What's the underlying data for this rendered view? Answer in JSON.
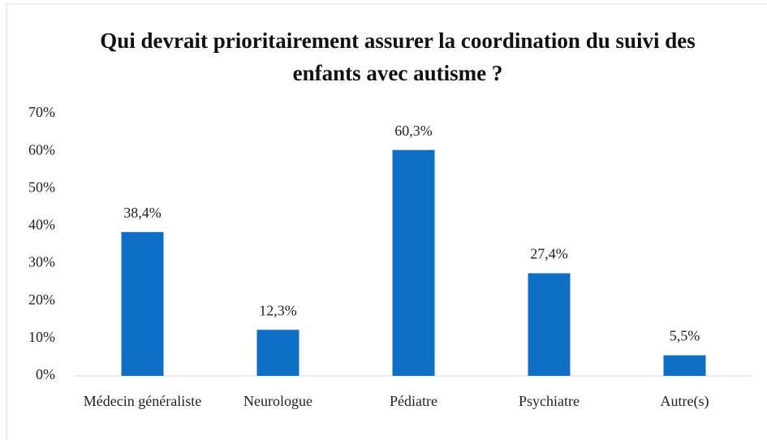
{
  "chart_data": {
    "type": "bar",
    "title": "Qui devrait prioritairement assurer la coordination du suivi des enfants avec autisme ?",
    "categories": [
      "Médecin généraliste",
      "Neurologue",
      "Pédiatre",
      "Psychiatre",
      "Autre(s)"
    ],
    "values": [
      38.4,
      12.3,
      60.3,
      27.4,
      5.5
    ],
    "value_labels": [
      "38,4%",
      "12,3%",
      "60,3%",
      "27,4%",
      "5,5%"
    ],
    "color": "#0e6fc5",
    "ylim": [
      0,
      70
    ],
    "yticks": [
      {
        "value": 0,
        "label": "0%"
      },
      {
        "value": 10,
        "label": "10%"
      },
      {
        "value": 20,
        "label": "20%"
      },
      {
        "value": 30,
        "label": "30%"
      },
      {
        "value": 40,
        "label": "40%"
      },
      {
        "value": 50,
        "label": "50%"
      },
      {
        "value": 60,
        "label": "60%"
      },
      {
        "value": 70,
        "label": "70%"
      }
    ],
    "grid": false
  }
}
